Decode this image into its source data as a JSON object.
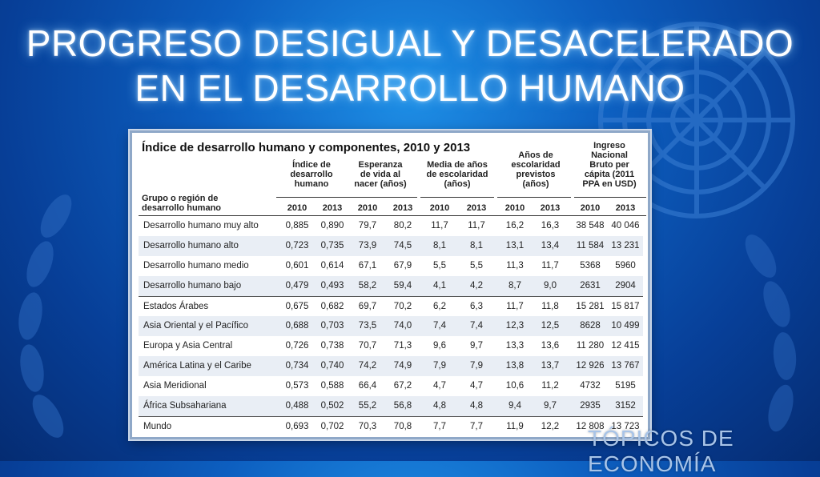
{
  "slide": {
    "title_line1": "PROGRESO DESIGUAL Y DESACELERADO",
    "title_line2": "EN EL DESARROLLO HUMANO",
    "footer": "TÓPICOS DE ECONOMÍA"
  },
  "table": {
    "title": "Índice de desarrollo humano y componentes, 2010 y 2013",
    "group_label_1": "Grupo o región de",
    "group_label_2": "desarrollo humano",
    "columns": [
      {
        "l1": "Índice de",
        "l2": "desarrollo",
        "l3": "humano",
        "l4": ""
      },
      {
        "l1": "Esperanza",
        "l2": "de vida al",
        "l3": "nacer (años)",
        "l4": ""
      },
      {
        "l1": "Media de años",
        "l2": "de escolaridad",
        "l3": "(años)",
        "l4": ""
      },
      {
        "l1": "Años de",
        "l2": "escolaridad",
        "l3": "previstos",
        "l4": "(años)"
      },
      {
        "l1": "Ingreso",
        "l2": "Nacional",
        "l3": "Bruto per",
        "l4": "cápita (2011",
        "l5": "PPA en USD)"
      }
    ],
    "year_a": "2010",
    "year_b": "2013",
    "rows": [
      {
        "name": "Desarrollo humano muy alto",
        "v": [
          "0,885",
          "0,890",
          "79,7",
          "80,2",
          "11,7",
          "11,7",
          "16,2",
          "16,3",
          "38 548",
          "40 046"
        ]
      },
      {
        "name": "Desarrollo humano alto",
        "v": [
          "0,723",
          "0,735",
          "73,9",
          "74,5",
          "8,1",
          "8,1",
          "13,1",
          "13,4",
          "11 584",
          "13 231"
        ]
      },
      {
        "name": "Desarrollo humano medio",
        "v": [
          "0,601",
          "0,614",
          "67,1",
          "67,9",
          "5,5",
          "5,5",
          "11,3",
          "11,7",
          "5368",
          "5960"
        ]
      },
      {
        "name": "Desarrollo humano bajo",
        "v": [
          "0,479",
          "0,493",
          "58,2",
          "59,4",
          "4,1",
          "4,2",
          "8,7",
          "9,0",
          "2631",
          "2904"
        ]
      },
      {
        "name": "Estados Árabes",
        "v": [
          "0,675",
          "0,682",
          "69,7",
          "70,2",
          "6,2",
          "6,3",
          "11,7",
          "11,8",
          "15 281",
          "15 817"
        ]
      },
      {
        "name": "Asia Oriental y el Pacífico",
        "v": [
          "0,688",
          "0,703",
          "73,5",
          "74,0",
          "7,4",
          "7,4",
          "12,3",
          "12,5",
          "8628",
          "10 499"
        ]
      },
      {
        "name": "Europa y Asia Central",
        "v": [
          "0,726",
          "0,738",
          "70,7",
          "71,3",
          "9,6",
          "9,7",
          "13,3",
          "13,6",
          "11 280",
          "12 415"
        ]
      },
      {
        "name": "América Latina y el Caribe",
        "v": [
          "0,734",
          "0,740",
          "74,2",
          "74,9",
          "7,9",
          "7,9",
          "13,8",
          "13,7",
          "12 926",
          "13 767"
        ]
      },
      {
        "name": "Asia Meridional",
        "v": [
          "0,573",
          "0,588",
          "66,4",
          "67,2",
          "4,7",
          "4,7",
          "10,6",
          "11,2",
          "4732",
          "5195"
        ]
      },
      {
        "name": "África Subsahariana",
        "v": [
          "0,488",
          "0,502",
          "55,2",
          "56,8",
          "4,8",
          "4,8",
          "9,4",
          "9,7",
          "2935",
          "3152"
        ]
      },
      {
        "name": "Mundo",
        "v": [
          "0,693",
          "0,702",
          "70,3",
          "70,8",
          "7,7",
          "7,7",
          "11,9",
          "12,2",
          "12 808",
          "13 723"
        ]
      }
    ]
  }
}
